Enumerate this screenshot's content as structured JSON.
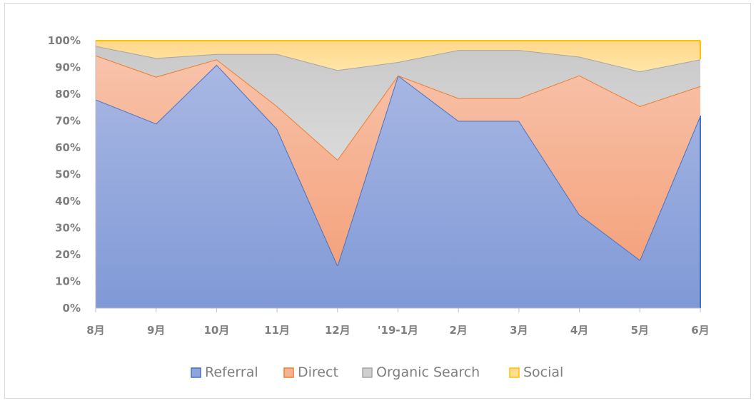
{
  "chart_data": {
    "type": "area",
    "stacked": true,
    "percent": true,
    "categories": [
      "8月",
      "9月",
      "10月",
      "11月",
      "12月",
      "'19-1月",
      "2月",
      "3月",
      "4月",
      "5月",
      "6月"
    ],
    "series": [
      {
        "name": "Referral",
        "values": [
          78,
          69,
          91,
          67,
          16,
          87,
          70,
          70,
          35,
          18,
          72
        ],
        "fill": "#8fa4dc",
        "stroke": "#4472c4"
      },
      {
        "name": "Direct",
        "values": [
          16.5,
          17.5,
          2,
          8.5,
          39.5,
          0,
          8.5,
          8.5,
          52,
          57.5,
          11
        ],
        "fill": "#f6b394",
        "stroke": "#ed7d31"
      },
      {
        "name": "Organic Search",
        "values": [
          3.5,
          7,
          2,
          19.5,
          33.5,
          5,
          18,
          18,
          7,
          13,
          10
        ],
        "fill": "#cfcfcf",
        "stroke": "#a5a5a5"
      },
      {
        "name": "Social",
        "values": [
          2,
          6.5,
          5,
          5,
          11,
          8,
          3.5,
          3.5,
          6,
          11.5,
          7
        ],
        "fill": "#ffdf8f",
        "stroke": "#ffc000"
      }
    ],
    "y_ticks": [
      "0%",
      "10%",
      "20%",
      "30%",
      "40%",
      "50%",
      "60%",
      "70%",
      "80%",
      "90%",
      "100%"
    ],
    "ylim": [
      0,
      100
    ],
    "legend_position": "bottom",
    "grid": false,
    "colors": {
      "axis": "#bfbfbf",
      "text": "#7f7f7f"
    }
  }
}
